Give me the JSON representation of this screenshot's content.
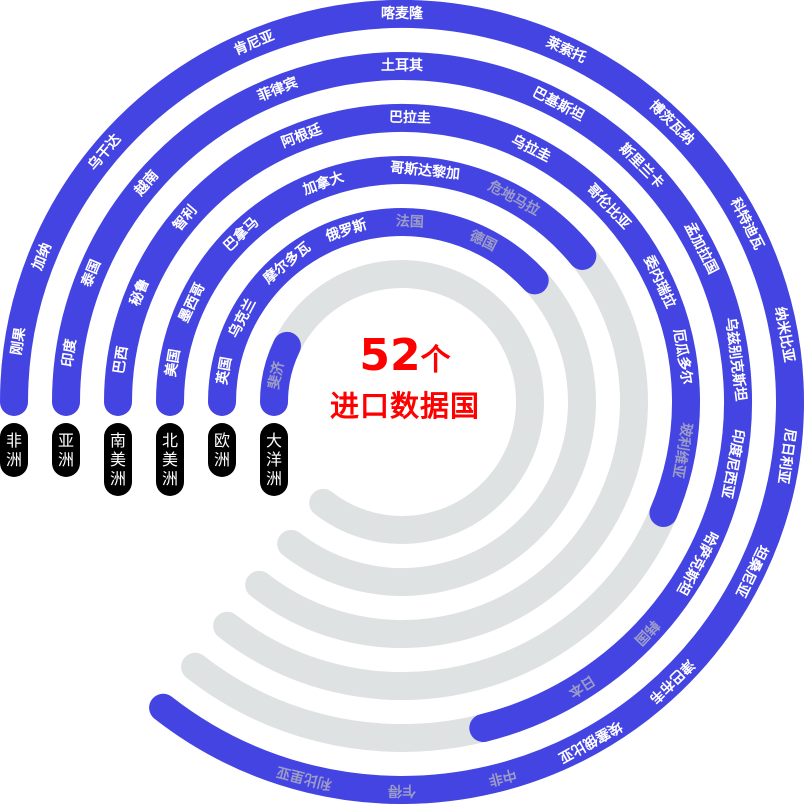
{
  "center": {
    "count": "52",
    "unit": "个",
    "label": "进口数据国"
  },
  "colors": {
    "arc": "#4444e3",
    "track": "#dfe2e3",
    "label": "#ffffff",
    "label_muted": "#9b9bc8",
    "pill": "#000000",
    "center_text": "#ff0000"
  },
  "continents": [
    {
      "name": "非洲",
      "countries": [
        {
          "name": "刚果"
        },
        {
          "name": "加纳"
        },
        {
          "name": "乌干达"
        },
        {
          "name": "肯尼亚"
        },
        {
          "name": "喀麦隆"
        },
        {
          "name": "莱索托"
        },
        {
          "name": "博茨瓦纳"
        },
        {
          "name": "科特迪瓦"
        },
        {
          "name": "纳米比亚"
        },
        {
          "name": "尼日利亚"
        },
        {
          "name": "坦桑尼亚"
        },
        {
          "name": "津巴布韦"
        },
        {
          "name": "埃塞俄比亚"
        },
        {
          "name": "中非",
          "muted": true
        },
        {
          "name": "乍得",
          "muted": true
        },
        {
          "name": "利比里亚",
          "muted": true
        }
      ]
    },
    {
      "name": "亚洲",
      "countries": [
        {
          "name": "印度"
        },
        {
          "name": "泰国"
        },
        {
          "name": "越南"
        },
        {
          "name": "菲律宾"
        },
        {
          "name": "土耳其"
        },
        {
          "name": "巴基斯坦"
        },
        {
          "name": "斯里兰卡"
        },
        {
          "name": "孟加拉国"
        },
        {
          "name": "乌兹别克斯坦"
        },
        {
          "name": "印度尼西亚"
        },
        {
          "name": "哈萨克斯坦"
        },
        {
          "name": "韩国",
          "muted": true
        },
        {
          "name": "日本",
          "muted": true
        }
      ]
    },
    {
      "name": "南美洲",
      "countries": [
        {
          "name": "巴西"
        },
        {
          "name": "秘鲁"
        },
        {
          "name": "智利"
        },
        {
          "name": "阿根廷"
        },
        {
          "name": "巴拉圭"
        },
        {
          "name": "乌拉圭"
        },
        {
          "name": "哥伦比亚"
        },
        {
          "name": "委内瑞拉"
        },
        {
          "name": "厄瓜多尔"
        },
        {
          "name": "玻利维亚",
          "muted": true
        }
      ]
    },
    {
      "name": "北美洲",
      "countries": [
        {
          "name": "美国"
        },
        {
          "name": "墨西哥"
        },
        {
          "name": "巴拿马"
        },
        {
          "name": "加拿大"
        },
        {
          "name": "哥斯达黎加"
        },
        {
          "name": "危地马拉",
          "muted": true
        }
      ]
    },
    {
      "name": "欧洲",
      "countries": [
        {
          "name": "英国"
        },
        {
          "name": "乌克兰"
        },
        {
          "name": "摩尔多瓦"
        },
        {
          "name": "俄罗斯"
        },
        {
          "name": "法国",
          "muted": true
        },
        {
          "name": "德国",
          "muted": true
        }
      ]
    },
    {
      "name": "大洋洲",
      "countries": [
        {
          "name": "斐济",
          "muted": true
        }
      ]
    }
  ]
}
